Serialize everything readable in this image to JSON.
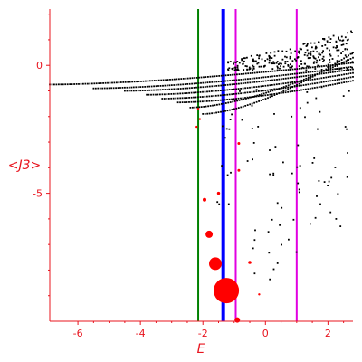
{
  "chart_data": {
    "type": "scatter",
    "title": "",
    "xlabel": "E",
    "ylabel": "<J3>",
    "xlim": [
      -6.9,
      2.8
    ],
    "ylim": [
      -10,
      2.2
    ],
    "x_ticks": [
      -6,
      -4,
      -2,
      0,
      2
    ],
    "y_ticks": [
      0,
      -5
    ],
    "x_tick_labels": [
      "-6",
      "-4",
      "-2",
      "0",
      "2"
    ],
    "y_tick_labels": [
      "0",
      "-5"
    ],
    "axis_color": "#e8141e",
    "vertical_lines": [
      {
        "x": -2.15,
        "color": "#008000",
        "width": 2
      },
      {
        "x": -1.35,
        "color": "#0000ff",
        "width": 4
      },
      {
        "x": -0.95,
        "color": "#e100e1",
        "width": 2
      },
      {
        "x": 1.0,
        "color": "#e100e1",
        "width": 2
      }
    ],
    "point_color": "#000000",
    "red_points": [
      {
        "x": -2.15,
        "y": -1.7,
        "r": 1.2
      },
      {
        "x": -2.1,
        "y": -2.1,
        "r": 1.2
      },
      {
        "x": -2.2,
        "y": -2.4,
        "r": 1.2
      },
      {
        "x": -0.85,
        "y": -3.05,
        "r": 1.5
      },
      {
        "x": -0.85,
        "y": -4.1,
        "r": 1.5
      },
      {
        "x": -1.5,
        "y": -5.0,
        "r": 1.7
      },
      {
        "x": -1.95,
        "y": -5.25,
        "r": 2.0
      },
      {
        "x": -1.8,
        "y": -6.6,
        "r": 4.0
      },
      {
        "x": -1.6,
        "y": -7.75,
        "r": 7.0
      },
      {
        "x": -1.25,
        "y": -8.8,
        "r": 14.0
      },
      {
        "x": -0.5,
        "y": -7.7,
        "r": 1.8
      },
      {
        "x": -0.2,
        "y": -8.95,
        "r": 1.2
      },
      {
        "x": -0.9,
        "y": -9.95,
        "r": 3.0
      }
    ],
    "red_color": "#ff0000"
  }
}
